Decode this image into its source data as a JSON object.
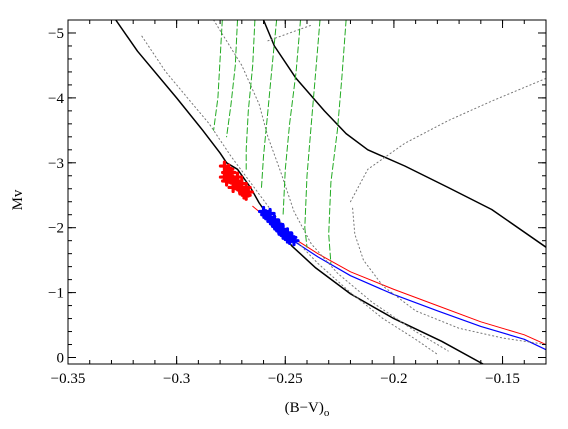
{
  "chart_data": {
    "type": "line",
    "title": "",
    "xlabel_main": "(B−V)",
    "xlabel_sub": "o",
    "ylabel": "Mv",
    "xlim": [
      -0.35,
      -0.13
    ],
    "ylim": [
      0.1,
      -5.2
    ],
    "y_inverted": true,
    "grid": false,
    "x_ticks": [
      {
        "value": -0.35,
        "label": "−0.35"
      },
      {
        "value": -0.3,
        "label": "−0.3"
      },
      {
        "value": -0.25,
        "label": "−0.25"
      },
      {
        "value": -0.2,
        "label": "−0.2"
      },
      {
        "value": -0.15,
        "label": "−0.15"
      }
    ],
    "y_ticks": [
      {
        "value": 0,
        "label": "0"
      },
      {
        "value": -1,
        "label": "−1"
      },
      {
        "value": -2,
        "label": "−2"
      },
      {
        "value": -3,
        "label": "−3"
      },
      {
        "value": -4,
        "label": "−4"
      },
      {
        "value": -5,
        "label": "−5"
      }
    ],
    "series": [
      {
        "style": "solid-black",
        "color": "#000000",
        "points": [
          [
            -0.328,
            -5.2
          ],
          [
            -0.318,
            -4.72
          ],
          [
            -0.3,
            -4.0
          ],
          [
            -0.288,
            -3.5
          ],
          [
            -0.28,
            -3.15
          ],
          [
            -0.277,
            -3.0
          ],
          [
            -0.272,
            -2.9
          ],
          [
            -0.266,
            -2.62
          ],
          [
            -0.262,
            -2.38
          ],
          [
            -0.255,
            -2.05
          ],
          [
            -0.247,
            -1.72
          ],
          [
            -0.236,
            -1.38
          ],
          [
            -0.22,
            -0.98
          ],
          [
            -0.2,
            -0.6
          ],
          [
            -0.178,
            -0.25
          ],
          [
            -0.159,
            0.1
          ]
        ]
      },
      {
        "style": "solid-black",
        "color": "#000000",
        "points": [
          [
            -0.26,
            -5.2
          ],
          [
            -0.255,
            -4.8
          ],
          [
            -0.245,
            -4.3
          ],
          [
            -0.232,
            -3.8
          ],
          [
            -0.222,
            -3.45
          ],
          [
            -0.212,
            -3.2
          ],
          [
            -0.195,
            -2.95
          ],
          [
            -0.175,
            -2.62
          ],
          [
            -0.155,
            -2.28
          ],
          [
            -0.13,
            -1.7
          ]
        ]
      },
      {
        "style": "solid-red",
        "color": "#ff0000",
        "points": [
          [
            -0.265,
            -2.33
          ],
          [
            -0.25,
            -1.92
          ],
          [
            -0.235,
            -1.6
          ],
          [
            -0.22,
            -1.32
          ],
          [
            -0.2,
            -1.05
          ],
          [
            -0.18,
            -0.8
          ],
          [
            -0.16,
            -0.55
          ],
          [
            -0.14,
            -0.35
          ],
          [
            -0.13,
            -0.2
          ]
        ]
      },
      {
        "style": "solid-blue",
        "color": "#0000ff",
        "points": [
          [
            -0.262,
            -2.25
          ],
          [
            -0.25,
            -1.88
          ],
          [
            -0.235,
            -1.55
          ],
          [
            -0.22,
            -1.26
          ],
          [
            -0.2,
            -0.97
          ],
          [
            -0.18,
            -0.72
          ],
          [
            -0.16,
            -0.48
          ],
          [
            -0.14,
            -0.28
          ],
          [
            -0.13,
            -0.12
          ]
        ]
      },
      {
        "style": "dotted-gray",
        "color": "#777777",
        "points": [
          [
            -0.316,
            -4.95
          ],
          [
            -0.305,
            -4.4
          ],
          [
            -0.295,
            -4.0
          ],
          [
            -0.285,
            -3.6
          ],
          [
            -0.275,
            -3.1
          ],
          [
            -0.265,
            -2.65
          ],
          [
            -0.255,
            -2.2
          ],
          [
            -0.245,
            -1.8
          ],
          [
            -0.235,
            -1.45
          ],
          [
            -0.22,
            -1.0
          ],
          [
            -0.205,
            -0.6
          ],
          [
            -0.19,
            -0.28
          ],
          [
            -0.18,
            -0.05
          ]
        ]
      },
      {
        "style": "dotted-gray",
        "color": "#777777",
        "points": [
          [
            -0.283,
            -5.2
          ],
          [
            -0.27,
            -4.5
          ],
          [
            -0.262,
            -3.9
          ],
          [
            -0.258,
            -3.4
          ],
          [
            -0.252,
            -2.85
          ],
          [
            -0.246,
            -2.25
          ],
          [
            -0.238,
            -1.75
          ],
          [
            -0.226,
            -1.3
          ],
          [
            -0.21,
            -0.85
          ],
          [
            -0.19,
            -0.4
          ],
          [
            -0.175,
            -0.1
          ]
        ]
      },
      {
        "style": "dotted-gray",
        "color": "#777777",
        "points": [
          [
            -0.22,
            -2.4
          ],
          [
            -0.212,
            -2.9
          ],
          [
            -0.195,
            -3.3
          ],
          [
            -0.175,
            -3.65
          ],
          [
            -0.155,
            -3.95
          ],
          [
            -0.13,
            -4.3
          ]
        ]
      },
      {
        "style": "dotted-gray",
        "color": "#777777",
        "points": [
          [
            -0.219,
            -2.3
          ],
          [
            -0.218,
            -1.9
          ],
          [
            -0.214,
            -1.5
          ],
          [
            -0.205,
            -1.1
          ],
          [
            -0.19,
            -0.72
          ],
          [
            -0.17,
            -0.45
          ],
          [
            -0.15,
            -0.3
          ],
          [
            -0.13,
            -0.2
          ]
        ]
      },
      {
        "style": "dotted-gray",
        "color": "#777777",
        "points": [
          [
            -0.258,
            -4.88
          ],
          [
            -0.248,
            -5.0
          ],
          [
            -0.238,
            -5.12
          ]
        ]
      },
      {
        "style": "dashed-green",
        "color": "#22aa22",
        "points": [
          [
            -0.279,
            -5.2
          ],
          [
            -0.28,
            -4.6
          ],
          [
            -0.281,
            -4.0
          ],
          [
            -0.283,
            -3.5
          ]
        ]
      },
      {
        "style": "dashed-green",
        "color": "#22aa22",
        "points": [
          [
            -0.272,
            -5.2
          ],
          [
            -0.273,
            -4.5
          ],
          [
            -0.275,
            -3.9
          ],
          [
            -0.277,
            -3.4
          ]
        ]
      },
      {
        "style": "dashed-green",
        "color": "#22aa22",
        "points": [
          [
            -0.264,
            -5.2
          ],
          [
            -0.265,
            -4.5
          ],
          [
            -0.267,
            -3.8
          ],
          [
            -0.268,
            -3.2
          ],
          [
            -0.268,
            -2.9
          ]
        ]
      },
      {
        "style": "dashed-green",
        "color": "#22aa22",
        "points": [
          [
            -0.254,
            -5.2
          ],
          [
            -0.256,
            -4.5
          ],
          [
            -0.258,
            -3.8
          ],
          [
            -0.26,
            -3.1
          ],
          [
            -0.261,
            -2.6
          ]
        ]
      },
      {
        "style": "dashed-green",
        "color": "#22aa22",
        "points": [
          [
            -0.243,
            -5.2
          ],
          [
            -0.245,
            -4.4
          ],
          [
            -0.248,
            -3.6
          ],
          [
            -0.25,
            -2.9
          ],
          [
            -0.251,
            -2.2
          ]
        ]
      },
      {
        "style": "dashed-green",
        "color": "#22aa22",
        "points": [
          [
            -0.234,
            -5.2
          ],
          [
            -0.236,
            -4.4
          ],
          [
            -0.238,
            -3.6
          ],
          [
            -0.24,
            -2.8
          ],
          [
            -0.241,
            -2.0
          ],
          [
            -0.24,
            -1.7
          ]
        ]
      },
      {
        "style": "dashed-green",
        "color": "#22aa22",
        "points": [
          [
            -0.222,
            -5.2
          ],
          [
            -0.224,
            -4.3
          ],
          [
            -0.226,
            -3.5
          ],
          [
            -0.229,
            -2.7
          ],
          [
            -0.23,
            -1.9
          ],
          [
            -0.229,
            -1.45
          ]
        ]
      }
    ],
    "markers": [
      {
        "name": "red-cluster",
        "color": "#ff0000",
        "points": [
          [
            -0.278,
            -2.95
          ],
          [
            -0.277,
            -2.85
          ],
          [
            -0.276,
            -2.8
          ],
          [
            -0.275,
            -2.75
          ],
          [
            -0.274,
            -2.7
          ],
          [
            -0.273,
            -2.72
          ],
          [
            -0.272,
            -2.65
          ],
          [
            -0.271,
            -2.6
          ],
          [
            -0.27,
            -2.58
          ],
          [
            -0.269,
            -2.52
          ],
          [
            -0.268,
            -2.5
          ],
          [
            -0.267,
            -2.55
          ],
          [
            -0.278,
            -2.78
          ],
          [
            -0.276,
            -2.9
          ],
          [
            -0.274,
            -2.62
          ],
          [
            -0.272,
            -2.78
          ],
          [
            -0.27,
            -2.68
          ],
          [
            -0.268,
            -2.62
          ],
          [
            -0.277,
            -2.72
          ],
          [
            -0.275,
            -2.85
          ]
        ]
      },
      {
        "name": "blue-cluster",
        "color": "#0000ff",
        "points": [
          [
            -0.26,
            -2.25
          ],
          [
            -0.259,
            -2.2
          ],
          [
            -0.257,
            -2.15
          ],
          [
            -0.256,
            -2.1
          ],
          [
            -0.255,
            -2.06
          ],
          [
            -0.254,
            -2.02
          ],
          [
            -0.253,
            -1.98
          ],
          [
            -0.252,
            -1.95
          ],
          [
            -0.251,
            -1.9
          ],
          [
            -0.25,
            -1.88
          ],
          [
            -0.249,
            -1.84
          ],
          [
            -0.248,
            -1.82
          ],
          [
            -0.247,
            -1.85
          ],
          [
            -0.253,
            -2.05
          ],
          [
            -0.255,
            -2.12
          ],
          [
            -0.251,
            -1.97
          ],
          [
            -0.249,
            -1.92
          ],
          [
            -0.258,
            -2.16
          ],
          [
            -0.246,
            -1.8
          ],
          [
            -0.257,
            -2.22
          ]
        ]
      }
    ]
  }
}
